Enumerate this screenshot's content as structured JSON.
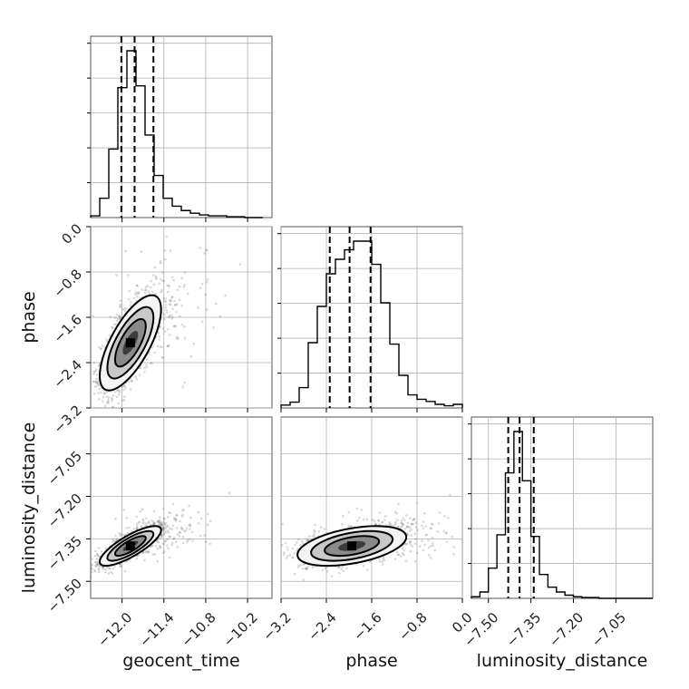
{
  "chart_data": {
    "type": "corner",
    "parameters": [
      "geocent_time",
      "phase",
      "luminosity_distance"
    ],
    "axis_labels": {
      "geocent_time": "geocent_time",
      "phase": "phase",
      "luminosity_distance": "luminosity_distance"
    },
    "ranges": {
      "geocent_time": [
        -12.45,
        -9.85
      ],
      "phase": [
        -3.2,
        0.0
      ],
      "luminosity_distance": [
        -7.56,
        -6.92
      ]
    },
    "ticks": {
      "geocent_time": {
        "values": [
          -12.0,
          -11.4,
          -10.8,
          -10.2
        ],
        "labels": [
          "−12.0",
          "−11.4",
          "−10.8",
          "−10.2"
        ]
      },
      "phase": {
        "values": [
          -3.2,
          -2.4,
          -1.6,
          -0.8,
          0.0
        ],
        "labels": [
          "−3.2",
          "−2.4",
          "−1.6",
          "−0.8",
          "0.0"
        ]
      },
      "luminosity_distance": {
        "values": [
          -7.5,
          -7.35,
          -7.2,
          -7.05
        ],
        "labels": [
          "−7.50",
          "−7.35",
          "−7.20",
          "−7.05"
        ]
      }
    },
    "grid": true,
    "histograms": {
      "geocent_time": {
        "bin_edges": [
          -12.45,
          -12.32,
          -12.19,
          -12.06,
          -11.93,
          -11.8,
          -11.67,
          -11.54,
          -11.41,
          -11.28,
          -11.15,
          -11.02,
          -10.89,
          -10.76,
          -10.63,
          -10.5,
          -10.37,
          -10.24,
          -10.11,
          -9.98
        ],
        "counts": [
          2,
          22,
          78,
          148,
          190,
          150,
          94,
          48,
          22,
          13,
          8,
          5,
          3,
          2,
          2,
          1,
          1,
          0,
          0
        ],
        "quantiles": [
          -12.01,
          -11.82,
          -11.55
        ]
      },
      "phase": {
        "bin_edges": [
          -3.2,
          -3.04,
          -2.88,
          -2.72,
          -2.56,
          -2.4,
          -2.24,
          -2.08,
          -1.92,
          -1.76,
          -1.6,
          -1.44,
          -1.28,
          -1.12,
          -0.96,
          -0.8,
          -0.64,
          -0.48,
          -0.32,
          -0.16,
          0.0
        ],
        "counts": [
          4,
          8,
          28,
          90,
          140,
          185,
          205,
          218,
          230,
          230,
          198,
          145,
          88,
          45,
          18,
          12,
          9,
          5,
          3,
          5
        ],
        "quantiles": [
          -2.34,
          -1.99,
          -1.62
        ]
      },
      "luminosity_distance": {
        "bin_edges": [
          -7.56,
          -7.53,
          -7.5,
          -7.47,
          -7.44,
          -7.41,
          -7.38,
          -7.35,
          -7.32,
          -7.29,
          -7.26,
          -7.23,
          -7.2,
          -7.17,
          -7.14,
          -7.11,
          -7.08,
          -7.05,
          -7.02,
          -6.99,
          -6.96,
          -6.92
        ],
        "counts": [
          2,
          8,
          38,
          80,
          158,
          210,
          148,
          78,
          30,
          14,
          8,
          4,
          2,
          1,
          1,
          0,
          0,
          0,
          0,
          0,
          0
        ],
        "quantiles": [
          -7.43,
          -7.39,
          -7.34
        ]
      }
    },
    "pairs": [
      {
        "x": "geocent_time",
        "y": "phase",
        "mean": [
          -11.88,
          -2.05
        ],
        "sd": [
          0.22,
          0.42
        ],
        "rho": 0.7
      },
      {
        "x": "geocent_time",
        "y": "luminosity_distance",
        "mean": [
          -11.88,
          -7.375
        ],
        "sd": [
          0.22,
          0.035
        ],
        "rho": 0.8
      },
      {
        "x": "phase",
        "y": "luminosity_distance",
        "mean": [
          -1.95,
          -7.375
        ],
        "sd": [
          0.48,
          0.035
        ],
        "rho": 0.45
      }
    ]
  }
}
